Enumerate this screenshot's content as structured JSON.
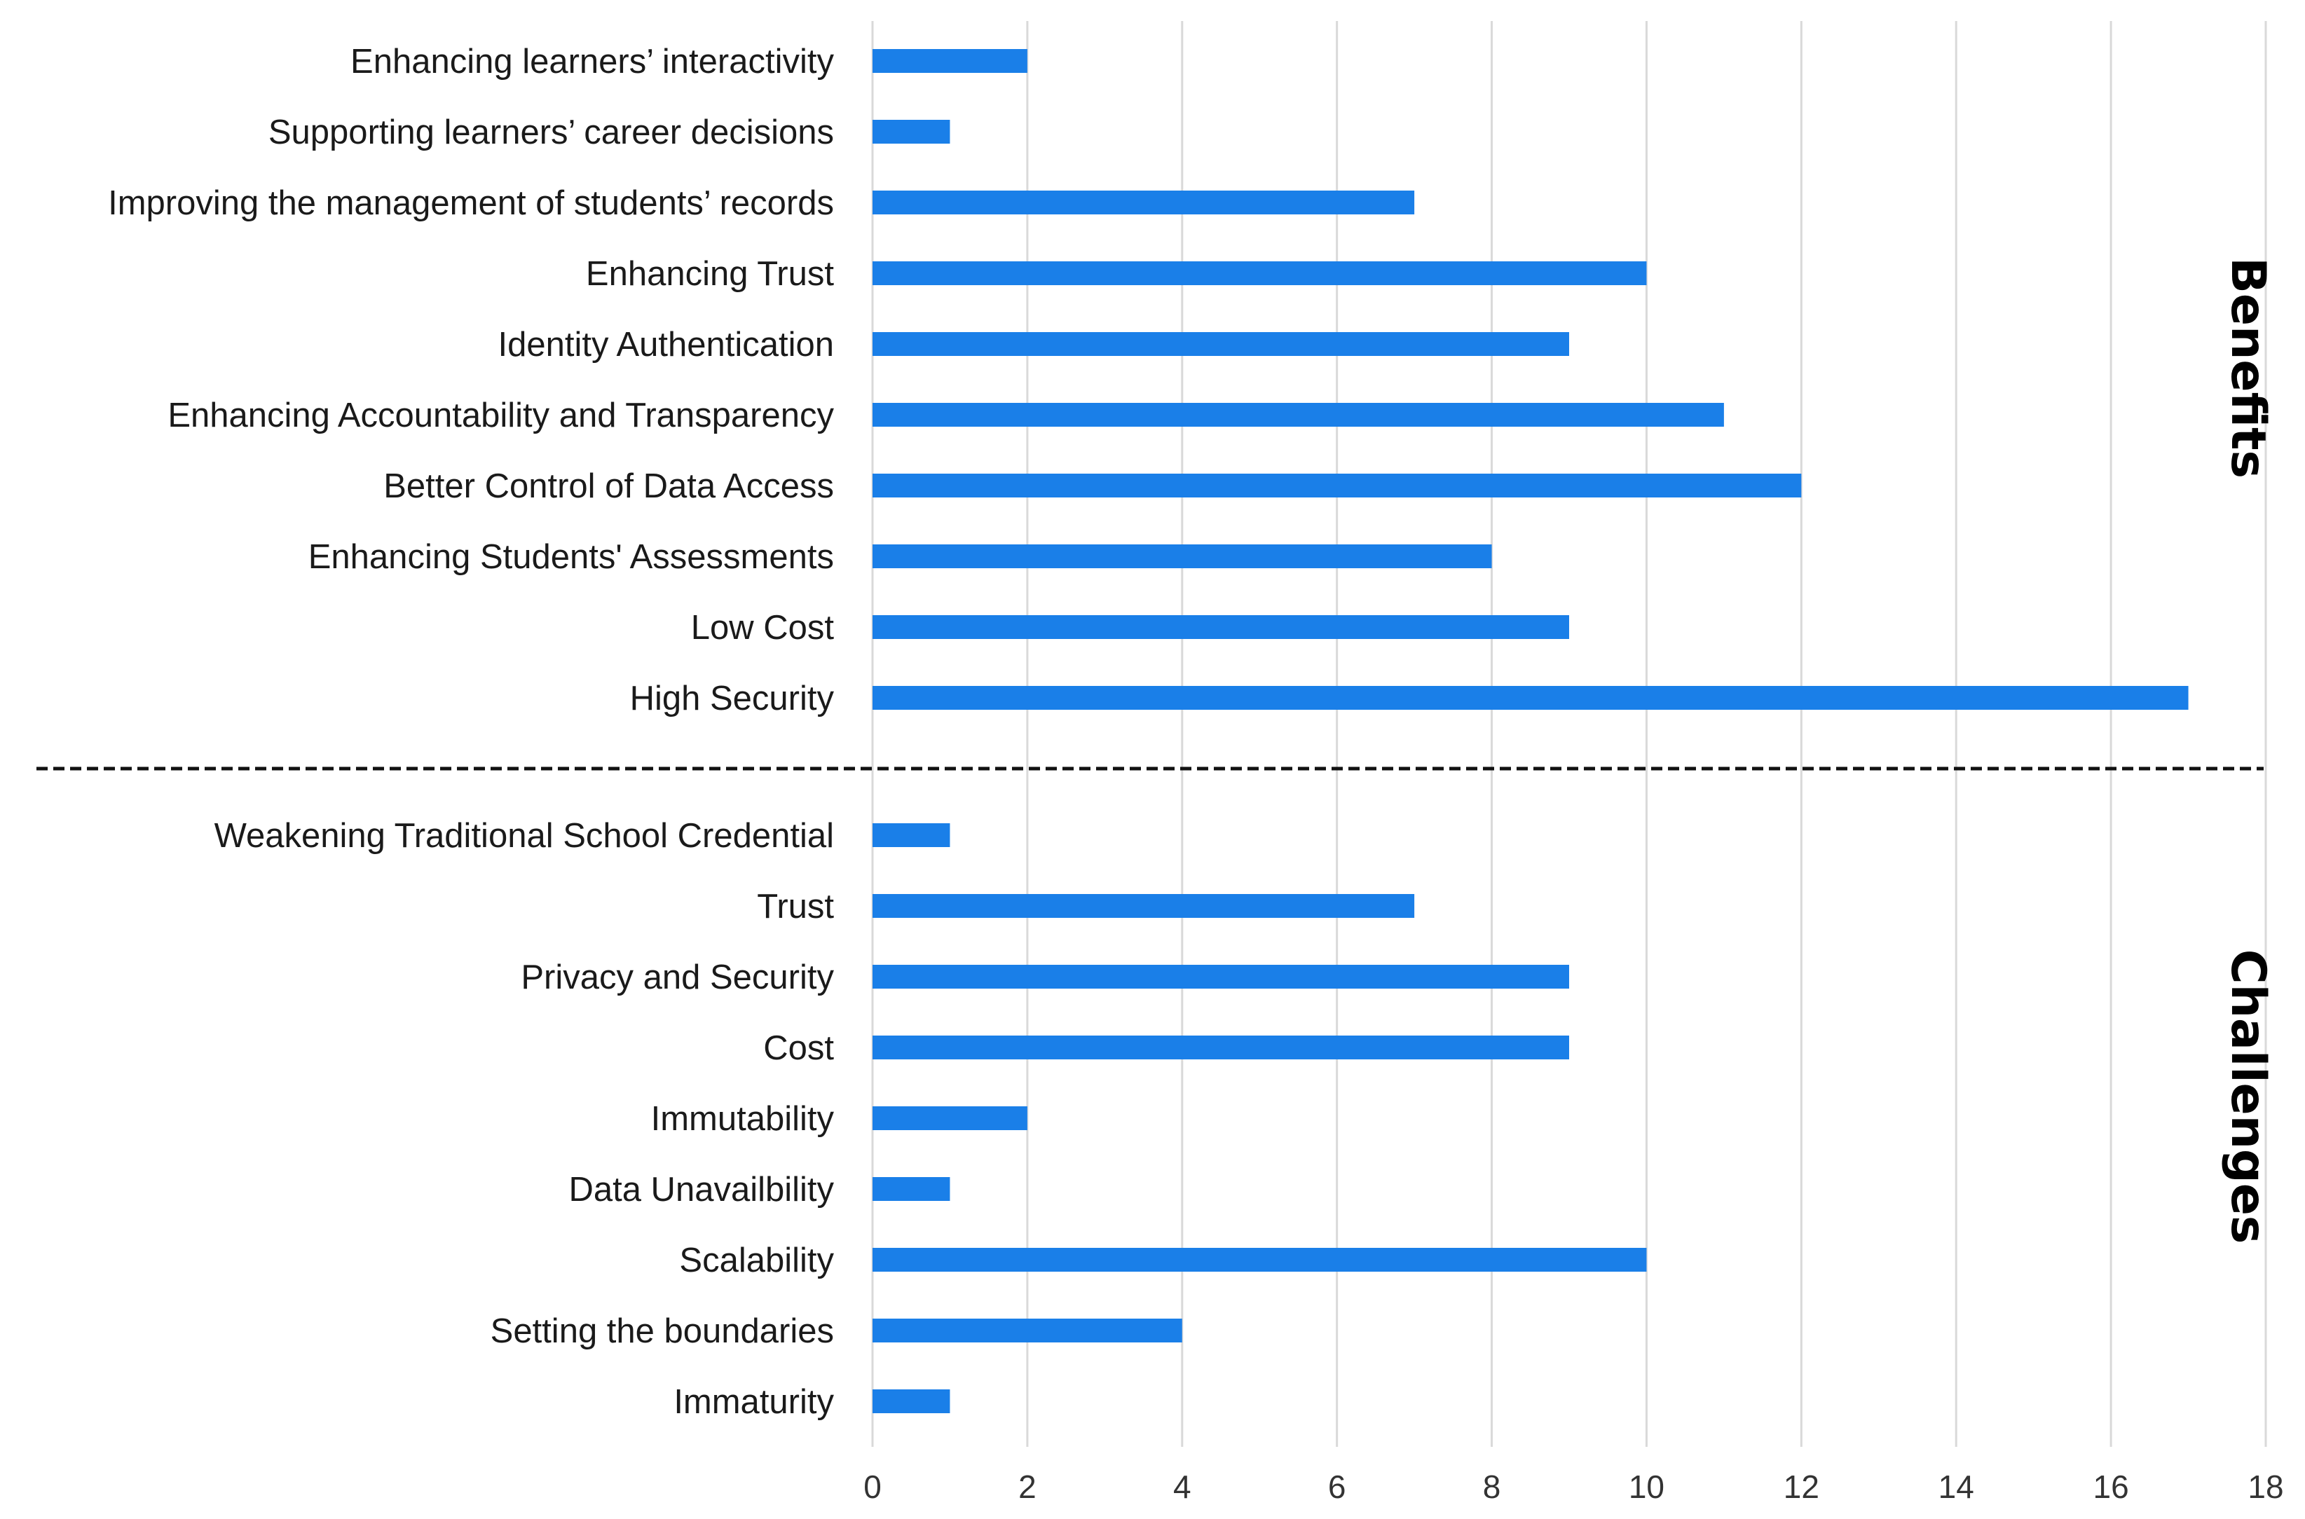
{
  "chart_data": {
    "type": "bar",
    "orientation": "horizontal",
    "title": "",
    "xlabel": "",
    "ylabel": "",
    "xlim": [
      0,
      18
    ],
    "xticks": [
      "0",
      "2",
      "4",
      "6",
      "8",
      "10",
      "12",
      "14",
      "16",
      "18"
    ],
    "grid": "vertical",
    "bar_color": "#1a7fe8",
    "grid_color": "#d9d9d9",
    "groups": [
      {
        "name": "Benefits",
        "categories": [
          "Enhancing learners’ interactivity",
          "Supporting learners’ career decisions",
          "Improving the management of students’ records",
          "Enhancing Trust",
          "Identity Authentication",
          "Enhancing Accountability and Transparency",
          "Better Control of Data Access",
          "Enhancing Students' Assessments",
          "Low Cost",
          "High Security"
        ],
        "values": [
          2,
          1,
          7,
          10,
          9,
          11,
          12,
          8,
          9,
          17
        ]
      },
      {
        "name": "Challenges",
        "categories": [
          "Weakening Traditional School Credential",
          "Trust",
          "Privacy and Security",
          "Cost",
          "Immutability",
          "Data Unavailbility",
          "Scalability",
          "Setting the boundaries",
          "Immaturity"
        ],
        "values": [
          1,
          7,
          9,
          9,
          2,
          1,
          10,
          4,
          1
        ]
      }
    ]
  }
}
